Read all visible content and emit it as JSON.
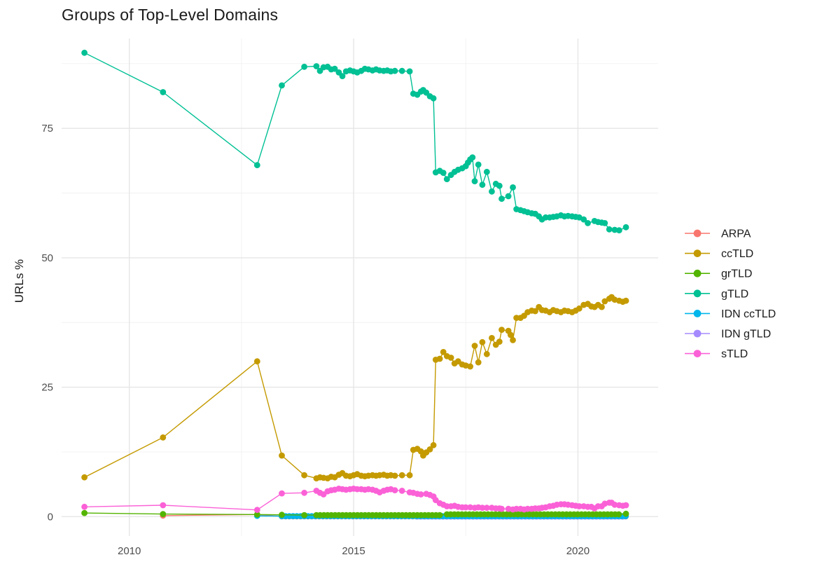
{
  "chart_data": {
    "type": "line",
    "title": "Groups of Top-Level Domains",
    "xlabel": "",
    "ylabel": "URLs %",
    "grid": true,
    "legend_position": "right",
    "xlim": [
      2008.5,
      2021.8
    ],
    "ylim": [
      -3.7,
      92.3
    ],
    "x_ticks": [
      "2010",
      "2015",
      "2020"
    ],
    "x_tick_values": [
      2010,
      2015,
      2020
    ],
    "x_minor_ticks": [
      2012.5,
      2017.5
    ],
    "y_ticks": [
      "0",
      "25",
      "50",
      "75"
    ],
    "y_tick_values": [
      0,
      25,
      50,
      75
    ],
    "y_minor_ticks": [
      12.5,
      37.5,
      62.5,
      87.5
    ],
    "draw_order": [
      "ARPA",
      "IDN gTLD",
      "IDN ccTLD",
      "grTLD",
      "ccTLD",
      "gTLD",
      "sTLD"
    ],
    "series": [
      {
        "name": "ARPA",
        "color": "#F8766D",
        "points": [
          [
            2010.75,
            0.2
          ],
          [
            2012.85,
            0.4
          ]
        ],
        "flat_runs": [
          {
            "start": 2013.4,
            "end": 2021.07,
            "step": 0.0833,
            "value": 0.05
          }
        ]
      },
      {
        "name": "ccTLD",
        "color": "#C49A00",
        "points": [
          [
            2009.0,
            7.6
          ],
          [
            2010.75,
            15.3
          ],
          [
            2012.85,
            30.0
          ],
          [
            2013.4,
            11.8
          ],
          [
            2013.9,
            8.0
          ],
          [
            2014.17,
            7.4
          ],
          [
            2014.25,
            7.6
          ],
          [
            2014.33,
            7.5
          ],
          [
            2014.42,
            7.4
          ],
          [
            2014.5,
            7.7
          ],
          [
            2014.58,
            7.6
          ],
          [
            2014.67,
            8.1
          ],
          [
            2014.75,
            8.4
          ],
          [
            2014.83,
            7.9
          ],
          [
            2014.92,
            7.8
          ],
          [
            2015.0,
            8.0
          ],
          [
            2015.08,
            8.2
          ],
          [
            2015.17,
            7.9
          ],
          [
            2015.25,
            7.8
          ],
          [
            2015.33,
            7.9
          ],
          [
            2015.42,
            8.0
          ],
          [
            2015.5,
            7.9
          ],
          [
            2015.58,
            8.0
          ],
          [
            2015.67,
            8.1
          ],
          [
            2015.75,
            7.9
          ],
          [
            2015.83,
            8.0
          ],
          [
            2015.92,
            7.9
          ],
          [
            2016.08,
            8.0
          ],
          [
            2016.25,
            8.0
          ],
          [
            2016.33,
            12.9
          ],
          [
            2016.42,
            13.1
          ],
          [
            2016.5,
            12.6
          ],
          [
            2016.55,
            11.8
          ],
          [
            2016.62,
            12.4
          ],
          [
            2016.7,
            13.0
          ],
          [
            2016.78,
            13.8
          ],
          [
            2016.83,
            30.3
          ],
          [
            2016.92,
            30.5
          ],
          [
            2017.0,
            31.8
          ],
          [
            2017.08,
            31.0
          ],
          [
            2017.17,
            30.7
          ],
          [
            2017.25,
            29.6
          ],
          [
            2017.33,
            30.0
          ],
          [
            2017.42,
            29.4
          ],
          [
            2017.5,
            29.2
          ],
          [
            2017.6,
            29.0
          ],
          [
            2017.7,
            33.0
          ],
          [
            2017.78,
            29.8
          ],
          [
            2017.87,
            33.7
          ],
          [
            2017.97,
            31.4
          ],
          [
            2018.08,
            34.5
          ],
          [
            2018.17,
            33.2
          ],
          [
            2018.25,
            33.8
          ],
          [
            2018.3,
            36.1
          ],
          [
            2018.45,
            35.9
          ],
          [
            2018.5,
            35.1
          ],
          [
            2018.55,
            34.1
          ],
          [
            2018.63,
            38.4
          ],
          [
            2018.72,
            38.4
          ],
          [
            2018.8,
            38.8
          ],
          [
            2018.88,
            39.5
          ],
          [
            2018.97,
            39.8
          ],
          [
            2019.05,
            39.7
          ],
          [
            2019.13,
            40.5
          ],
          [
            2019.2,
            39.9
          ],
          [
            2019.28,
            39.8
          ],
          [
            2019.37,
            39.5
          ],
          [
            2019.45,
            39.9
          ],
          [
            2019.53,
            39.7
          ],
          [
            2019.62,
            39.5
          ],
          [
            2019.7,
            39.8
          ],
          [
            2019.78,
            39.7
          ],
          [
            2019.87,
            39.5
          ],
          [
            2019.95,
            39.8
          ],
          [
            2020.03,
            40.2
          ],
          [
            2020.13,
            40.9
          ],
          [
            2020.22,
            41.1
          ],
          [
            2020.3,
            40.6
          ],
          [
            2020.37,
            40.5
          ],
          [
            2020.45,
            40.9
          ],
          [
            2020.53,
            40.5
          ],
          [
            2020.6,
            41.6
          ],
          [
            2020.7,
            42.1
          ],
          [
            2020.75,
            42.4
          ],
          [
            2020.82,
            41.9
          ],
          [
            2020.92,
            41.7
          ],
          [
            2021.0,
            41.5
          ],
          [
            2021.07,
            41.7
          ]
        ]
      },
      {
        "name": "grTLD",
        "color": "#53B400",
        "points": [
          [
            2009.0,
            0.7
          ],
          [
            2010.75,
            0.5
          ],
          [
            2012.85,
            0.4
          ],
          [
            2013.4,
            0.35
          ],
          [
            2013.9,
            0.3
          ],
          [
            2021.07,
            0.55
          ]
        ],
        "flat_runs": [
          {
            "start": 2014.17,
            "end": 2017.0,
            "step": 0.0833,
            "value": 0.3
          },
          {
            "start": 2017.08,
            "end": 2020.95,
            "step": 0.0833,
            "value": 0.45
          }
        ]
      },
      {
        "name": "gTLD",
        "color": "#00C094",
        "points": [
          [
            2009.0,
            89.6
          ],
          [
            2010.75,
            82.0
          ],
          [
            2012.85,
            67.9
          ],
          [
            2013.4,
            83.3
          ],
          [
            2013.9,
            86.9
          ],
          [
            2014.17,
            87.0
          ],
          [
            2014.25,
            86.1
          ],
          [
            2014.33,
            86.8
          ],
          [
            2014.42,
            86.9
          ],
          [
            2014.5,
            86.4
          ],
          [
            2014.58,
            86.5
          ],
          [
            2014.67,
            85.8
          ],
          [
            2014.75,
            85.1
          ],
          [
            2014.83,
            86.0
          ],
          [
            2014.92,
            86.2
          ],
          [
            2015.0,
            86.0
          ],
          [
            2015.08,
            85.8
          ],
          [
            2015.17,
            86.1
          ],
          [
            2015.25,
            86.5
          ],
          [
            2015.33,
            86.4
          ],
          [
            2015.42,
            86.2
          ],
          [
            2015.5,
            86.4
          ],
          [
            2015.58,
            86.2
          ],
          [
            2015.67,
            86.1
          ],
          [
            2015.75,
            86.2
          ],
          [
            2015.83,
            86.0
          ],
          [
            2015.92,
            86.1
          ],
          [
            2016.08,
            86.1
          ],
          [
            2016.25,
            86.0
          ],
          [
            2016.33,
            81.7
          ],
          [
            2016.42,
            81.5
          ],
          [
            2016.5,
            82.1
          ],
          [
            2016.55,
            82.4
          ],
          [
            2016.62,
            81.9
          ],
          [
            2016.7,
            81.2
          ],
          [
            2016.78,
            80.8
          ],
          [
            2016.83,
            66.5
          ],
          [
            2016.92,
            66.8
          ],
          [
            2017.0,
            66.4
          ],
          [
            2017.08,
            65.2
          ],
          [
            2017.17,
            66.0
          ],
          [
            2017.25,
            66.6
          ],
          [
            2017.33,
            67.0
          ],
          [
            2017.42,
            67.3
          ],
          [
            2017.5,
            67.7
          ],
          [
            2017.55,
            68.4
          ],
          [
            2017.6,
            69.0
          ],
          [
            2017.65,
            69.4
          ],
          [
            2017.7,
            64.8
          ],
          [
            2017.78,
            68.0
          ],
          [
            2017.87,
            64.1
          ],
          [
            2017.97,
            66.6
          ],
          [
            2018.08,
            62.8
          ],
          [
            2018.17,
            64.3
          ],
          [
            2018.25,
            63.9
          ],
          [
            2018.3,
            61.4
          ],
          [
            2018.45,
            61.9
          ],
          [
            2018.55,
            63.6
          ],
          [
            2018.63,
            59.4
          ],
          [
            2018.72,
            59.2
          ],
          [
            2018.8,
            59.0
          ],
          [
            2018.88,
            58.8
          ],
          [
            2018.97,
            58.6
          ],
          [
            2019.05,
            58.5
          ],
          [
            2019.13,
            58.0
          ],
          [
            2019.2,
            57.4
          ],
          [
            2019.28,
            57.8
          ],
          [
            2019.37,
            57.8
          ],
          [
            2019.45,
            57.9
          ],
          [
            2019.53,
            58.0
          ],
          [
            2019.62,
            58.2
          ],
          [
            2019.7,
            58.0
          ],
          [
            2019.78,
            58.1
          ],
          [
            2019.87,
            58.0
          ],
          [
            2019.95,
            57.9
          ],
          [
            2020.03,
            57.8
          ],
          [
            2020.13,
            57.4
          ],
          [
            2020.22,
            56.7
          ],
          [
            2020.37,
            57.1
          ],
          [
            2020.45,
            56.9
          ],
          [
            2020.53,
            56.8
          ],
          [
            2020.6,
            56.7
          ],
          [
            2020.7,
            55.5
          ],
          [
            2020.82,
            55.4
          ],
          [
            2020.92,
            55.3
          ],
          [
            2021.07,
            55.9
          ]
        ]
      },
      {
        "name": "IDN ccTLD",
        "color": "#00B6EB",
        "points": [
          [
            2012.85,
            0.15
          ]
        ],
        "flat_runs": [
          {
            "start": 2013.4,
            "end": 2021.07,
            "step": 0.0833,
            "value": 0.1
          }
        ]
      },
      {
        "name": "IDN gTLD",
        "color": "#A58AFF",
        "points": [],
        "flat_runs": [
          {
            "start": 2016.42,
            "end": 2021.07,
            "step": 0.0833,
            "value": 0.03
          }
        ]
      },
      {
        "name": "sTLD",
        "color": "#FB61D7",
        "points": [
          [
            2009.0,
            1.9
          ],
          [
            2010.75,
            2.2
          ],
          [
            2012.85,
            1.3
          ],
          [
            2013.4,
            4.5
          ],
          [
            2013.9,
            4.6
          ],
          [
            2014.17,
            5.0
          ],
          [
            2014.25,
            4.6
          ],
          [
            2014.33,
            4.3
          ],
          [
            2014.42,
            4.9
          ],
          [
            2014.5,
            5.1
          ],
          [
            2014.58,
            5.2
          ],
          [
            2014.67,
            5.4
          ],
          [
            2014.75,
            5.3
          ],
          [
            2014.83,
            5.2
          ],
          [
            2014.92,
            5.3
          ],
          [
            2015.0,
            5.4
          ],
          [
            2015.08,
            5.3
          ],
          [
            2015.17,
            5.3
          ],
          [
            2015.25,
            5.2
          ],
          [
            2015.33,
            5.3
          ],
          [
            2015.42,
            5.2
          ],
          [
            2015.5,
            5.0
          ],
          [
            2015.58,
            4.7
          ],
          [
            2015.67,
            5.0
          ],
          [
            2015.75,
            5.2
          ],
          [
            2015.83,
            5.3
          ],
          [
            2015.92,
            5.1
          ],
          [
            2016.08,
            5.0
          ],
          [
            2016.25,
            4.7
          ],
          [
            2016.33,
            4.6
          ],
          [
            2016.42,
            4.4
          ],
          [
            2016.5,
            4.3
          ],
          [
            2016.62,
            4.4
          ],
          [
            2016.7,
            4.2
          ],
          [
            2016.78,
            3.9
          ],
          [
            2016.83,
            3.2
          ],
          [
            2016.92,
            2.6
          ],
          [
            2017.0,
            2.3
          ],
          [
            2017.08,
            2.0
          ],
          [
            2017.17,
            2.0
          ],
          [
            2017.25,
            2.1
          ],
          [
            2017.33,
            1.9
          ],
          [
            2017.42,
            1.8
          ],
          [
            2017.5,
            1.8
          ],
          [
            2017.6,
            1.8
          ],
          [
            2017.7,
            1.7
          ],
          [
            2017.78,
            1.8
          ],
          [
            2017.87,
            1.7
          ],
          [
            2017.97,
            1.7
          ],
          [
            2018.08,
            1.7
          ],
          [
            2018.17,
            1.6
          ],
          [
            2018.25,
            1.6
          ],
          [
            2018.3,
            1.5
          ],
          [
            2018.45,
            1.5
          ],
          [
            2018.55,
            1.4
          ],
          [
            2018.63,
            1.5
          ],
          [
            2018.72,
            1.5
          ],
          [
            2018.8,
            1.4
          ],
          [
            2018.88,
            1.5
          ],
          [
            2018.97,
            1.5
          ],
          [
            2019.05,
            1.6
          ],
          [
            2019.13,
            1.6
          ],
          [
            2019.2,
            1.7
          ],
          [
            2019.28,
            1.8
          ],
          [
            2019.37,
            2.0
          ],
          [
            2019.45,
            2.1
          ],
          [
            2019.53,
            2.3
          ],
          [
            2019.62,
            2.4
          ],
          [
            2019.7,
            2.4
          ],
          [
            2019.78,
            2.3
          ],
          [
            2019.87,
            2.2
          ],
          [
            2019.95,
            2.1
          ],
          [
            2020.03,
            2.0
          ],
          [
            2020.13,
            2.0
          ],
          [
            2020.22,
            1.9
          ],
          [
            2020.3,
            1.9
          ],
          [
            2020.37,
            1.6
          ],
          [
            2020.45,
            2.0
          ],
          [
            2020.53,
            2.0
          ],
          [
            2020.6,
            2.5
          ],
          [
            2020.7,
            2.7
          ],
          [
            2020.75,
            2.7
          ],
          [
            2020.82,
            2.3
          ],
          [
            2020.92,
            2.2
          ],
          [
            2021.0,
            2.1
          ],
          [
            2021.07,
            2.2
          ]
        ]
      }
    ],
    "legend_items": [
      "ARPA",
      "ccTLD",
      "grTLD",
      "gTLD",
      "IDN ccTLD",
      "IDN gTLD",
      "sTLD"
    ],
    "colors": {
      "ARPA": "#F8766D",
      "ccTLD": "#C49A00",
      "grTLD": "#53B400",
      "gTLD": "#00C094",
      "IDN ccTLD": "#00B6EB",
      "IDN gTLD": "#A58AFF",
      "sTLD": "#FB61D7",
      "grid_major": "#E6E6E6",
      "grid_minor": "#F1F1F1",
      "tick_text": "#4d4d4d",
      "title_text": "#1a1a1a",
      "background": "#ffffff"
    }
  }
}
